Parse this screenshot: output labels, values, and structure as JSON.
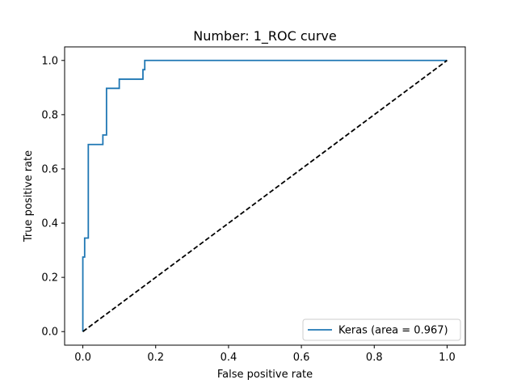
{
  "chart_data": {
    "type": "line",
    "title": "Number:  1_ROC curve",
    "xlabel": "False positive rate",
    "ylabel": "True positive rate",
    "xlim": [
      -0.05,
      1.05
    ],
    "ylim": [
      -0.05,
      1.05
    ],
    "xticks": [
      "0.0",
      "0.2",
      "0.4",
      "0.6",
      "0.8",
      "1.0"
    ],
    "yticks": [
      "0.0",
      "0.2",
      "0.4",
      "0.6",
      "0.8",
      "1.0"
    ],
    "grid": false,
    "legend_position": "lower-right",
    "series": [
      {
        "name": "Keras (area = 0.967)",
        "color": "#1f77b4",
        "style": "solid",
        "x": [
          0.0,
          0.0,
          0.005,
          0.005,
          0.015,
          0.015,
          0.055,
          0.055,
          0.065,
          0.065,
          0.1,
          0.1,
          0.165,
          0.165,
          0.17,
          0.17,
          1.0
        ],
        "y": [
          0.0,
          0.275,
          0.275,
          0.345,
          0.345,
          0.69,
          0.69,
          0.725,
          0.725,
          0.897,
          0.897,
          0.931,
          0.931,
          0.966,
          0.966,
          1.0,
          1.0
        ]
      },
      {
        "color": "#000000",
        "style": "dashed",
        "x": [
          0.0,
          1.0
        ],
        "y": [
          0.0,
          1.0
        ]
      }
    ]
  }
}
